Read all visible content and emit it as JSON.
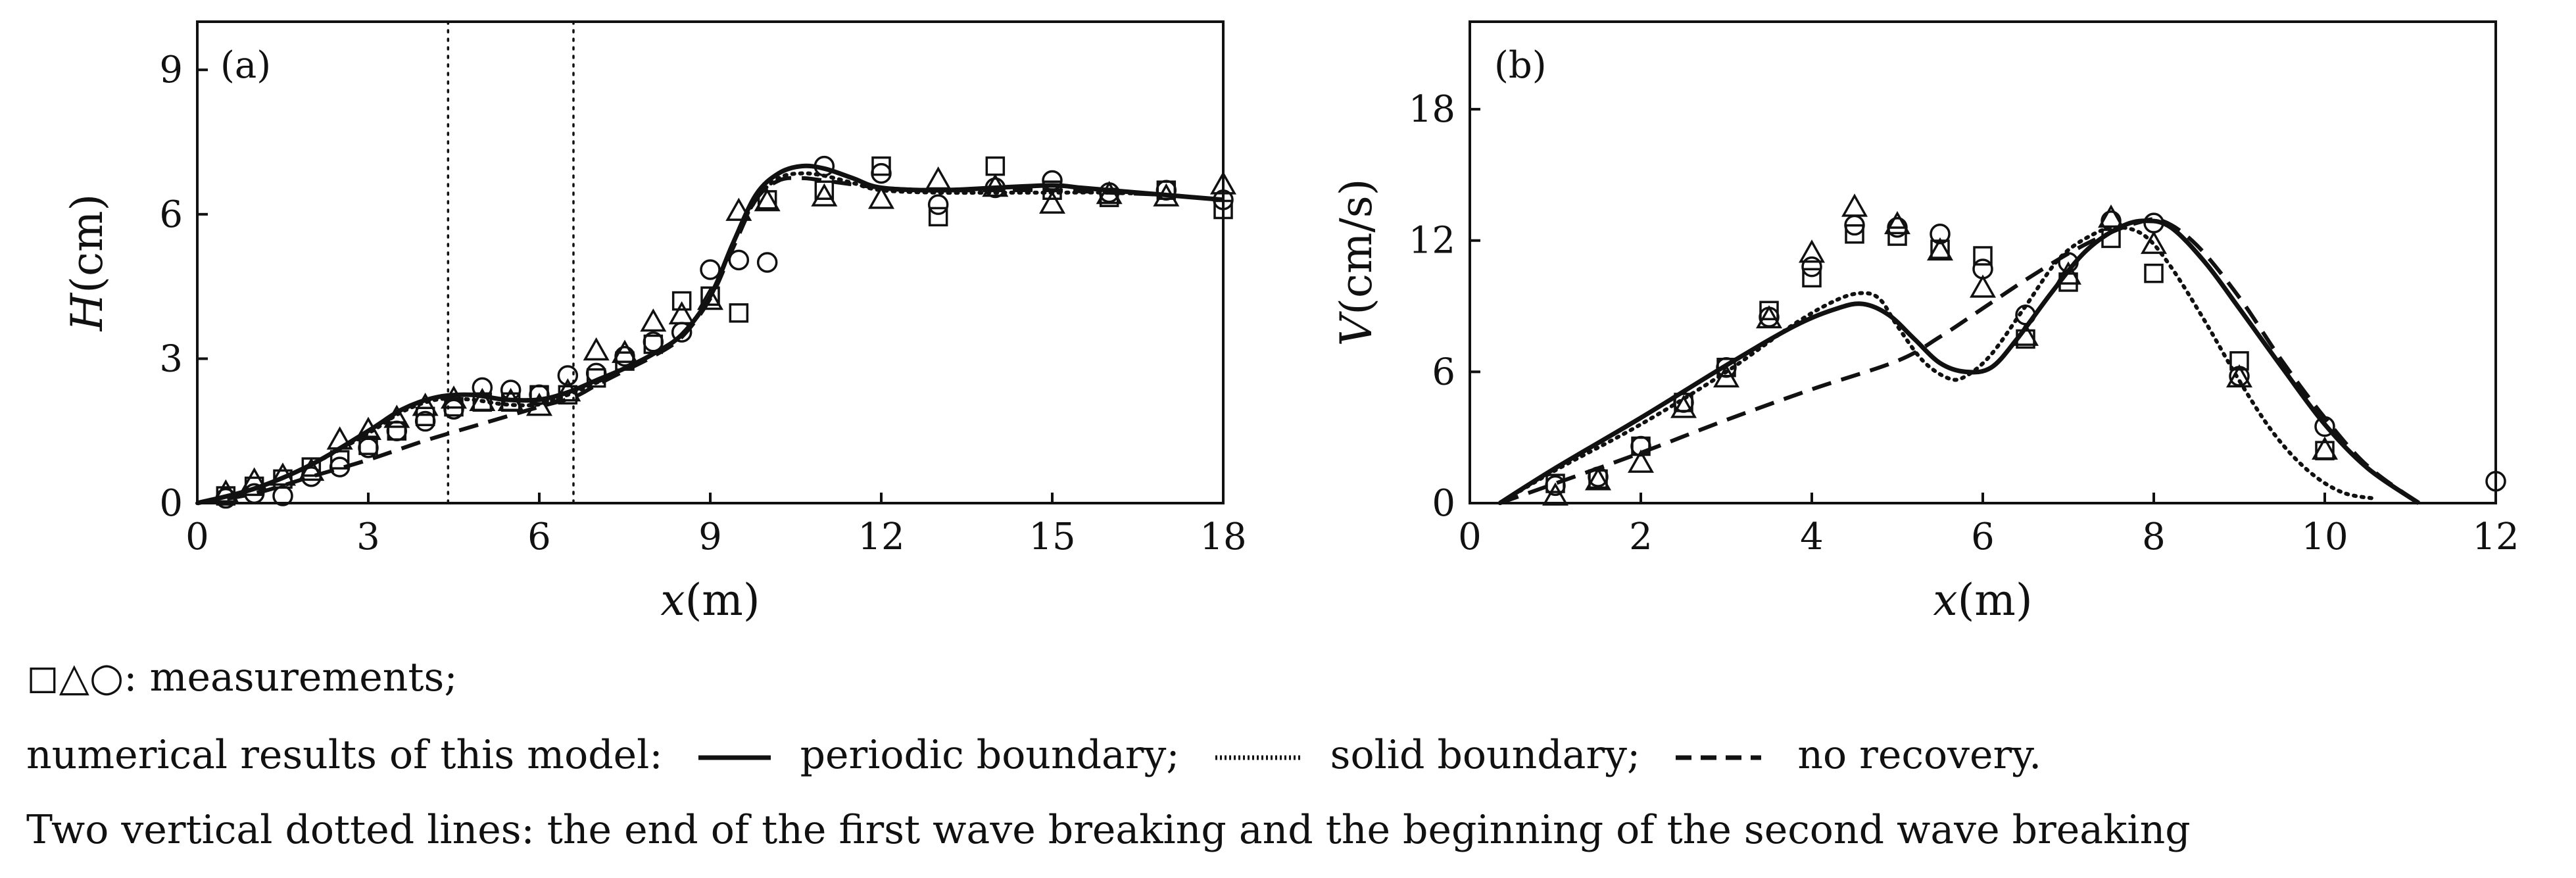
{
  "chart_data": [
    {
      "type": "line",
      "panel_label": "(a)",
      "xlabel_var": "x",
      "xlabel_unit": "(m)",
      "ylabel_var": "H",
      "ylabel_unit": "(cm)",
      "xlim": [
        0,
        18
      ],
      "ylim": [
        0,
        10
      ],
      "xticks": [
        0,
        3,
        6,
        9,
        12,
        15,
        18
      ],
      "yticks": [
        0,
        3,
        6,
        9
      ],
      "vlines": [
        4.4,
        6.6
      ],
      "series": [
        {
          "name": "periodic boundary",
          "style": "solid",
          "x": [
            0,
            1,
            2,
            3,
            3.6,
            4.2,
            4.8,
            5.4,
            6.0,
            6.5,
            7.0,
            7.5,
            8.0,
            8.5,
            9.0,
            9.4,
            9.8,
            10.2,
            10.6,
            11.0,
            11.5,
            12.0,
            13.0,
            14.0,
            15.0,
            15.5,
            16.0,
            17.0,
            18.0
          ],
          "y": [
            0,
            0.3,
            0.8,
            1.5,
            1.95,
            2.2,
            2.25,
            2.15,
            2.15,
            2.3,
            2.55,
            2.8,
            3.1,
            3.5,
            4.3,
            5.4,
            6.4,
            6.85,
            7.0,
            6.95,
            6.75,
            6.55,
            6.5,
            6.55,
            6.6,
            6.55,
            6.5,
            6.4,
            6.3
          ]
        },
        {
          "name": "solid boundary",
          "style": "dotted",
          "x": [
            0,
            1,
            2,
            3,
            3.6,
            4.2,
            4.8,
            5.4,
            6.0,
            6.5,
            7.0,
            7.5,
            8.0,
            8.5,
            9.0,
            9.4,
            9.8,
            10.2,
            10.6,
            11.0,
            11.5,
            12.0,
            13.0,
            14.0,
            15.0,
            16.0,
            17.0,
            18.0
          ],
          "y": [
            0,
            0.3,
            0.8,
            1.45,
            1.9,
            2.15,
            2.15,
            2.05,
            2.05,
            2.25,
            2.5,
            2.8,
            3.1,
            3.5,
            4.3,
            5.4,
            6.3,
            6.75,
            6.85,
            6.8,
            6.65,
            6.5,
            6.45,
            6.45,
            6.45,
            6.45,
            6.4,
            6.3
          ]
        },
        {
          "name": "no recovery",
          "style": "dashed",
          "x": [
            0,
            1,
            2,
            3,
            4,
            5,
            6,
            6.6,
            7.0,
            7.5,
            8.0,
            8.5,
            9.0,
            9.4,
            9.8,
            10.2,
            10.6,
            11.0,
            12.0,
            13.0,
            14.0,
            15.0,
            16.0,
            17.0,
            18.0
          ],
          "y": [
            0,
            0.2,
            0.55,
            0.9,
            1.3,
            1.65,
            2.0,
            2.2,
            2.45,
            2.75,
            3.05,
            3.45,
            4.25,
            5.3,
            6.3,
            6.7,
            6.75,
            6.7,
            6.55,
            6.5,
            6.5,
            6.5,
            6.45,
            6.4,
            6.3
          ]
        },
        {
          "name": "measurements (square)",
          "marker": "square",
          "x": [
            0.5,
            1.0,
            1.5,
            2.0,
            2.5,
            3.0,
            3.5,
            4.0,
            4.5,
            5.0,
            5.5,
            6.0,
            6.5,
            7.0,
            7.5,
            8.0,
            8.5,
            9.0,
            9.5,
            10.0,
            11.0,
            12.0,
            13.0,
            14.0,
            15.0,
            16.0,
            17.0,
            18.0
          ],
          "y": [
            0.15,
            0.35,
            0.5,
            0.75,
            0.9,
            1.2,
            1.5,
            1.8,
            2.0,
            2.1,
            2.1,
            2.25,
            2.25,
            2.6,
            2.95,
            3.3,
            4.2,
            4.3,
            3.95,
            6.3,
            6.5,
            7.0,
            5.95,
            7.0,
            6.5,
            6.35,
            6.5,
            6.1
          ]
        },
        {
          "name": "measurements (triangle)",
          "marker": "triangle",
          "x": [
            0.5,
            1.0,
            1.5,
            2.0,
            2.5,
            3.0,
            3.5,
            4.0,
            4.5,
            5.0,
            5.5,
            6.0,
            6.5,
            7.0,
            7.5,
            8.0,
            8.5,
            9.0,
            9.5,
            10.0,
            11.0,
            12.0,
            13.0,
            14.0,
            15.0,
            16.0,
            17.0,
            18.0
          ],
          "y": [
            0.2,
            0.45,
            0.55,
            0.65,
            1.3,
            1.5,
            1.75,
            2.0,
            2.15,
            2.1,
            2.1,
            2.0,
            2.3,
            3.15,
            3.1,
            3.75,
            3.9,
            4.2,
            6.05,
            6.25,
            6.35,
            6.3,
            6.7,
            6.55,
            6.2,
            6.4,
            6.35,
            6.6
          ]
        },
        {
          "name": "measurements (circle)",
          "marker": "circle",
          "x": [
            0.5,
            1.0,
            1.5,
            2.0,
            2.5,
            3.0,
            3.5,
            4.0,
            4.5,
            5.0,
            5.5,
            6.0,
            6.5,
            7.0,
            7.5,
            8.0,
            8.5,
            9.0,
            9.5,
            10.0,
            11.0,
            12.0,
            13.0,
            14.0,
            15.0,
            16.0,
            17.0,
            18.0
          ],
          "y": [
            0.1,
            0.2,
            0.15,
            0.55,
            0.75,
            1.15,
            1.5,
            1.7,
            1.95,
            2.4,
            2.35,
            2.25,
            2.65,
            2.7,
            3.05,
            3.35,
            3.55,
            4.85,
            5.05,
            5.0,
            7.0,
            6.85,
            6.2,
            6.55,
            6.7,
            6.45,
            6.5,
            6.3
          ]
        }
      ]
    },
    {
      "type": "line",
      "panel_label": "(b)",
      "xlabel_var": "x",
      "xlabel_unit": "(m)",
      "ylabel_var": "V",
      "ylabel_unit": "(cm/s)",
      "xlim": [
        0,
        12
      ],
      "ylim": [
        0,
        22
      ],
      "xticks": [
        0,
        2,
        4,
        6,
        8,
        10,
        12
      ],
      "yticks": [
        0,
        6,
        12,
        18
      ],
      "series": [
        {
          "name": "periodic boundary",
          "style": "solid",
          "x": [
            0.35,
            1.0,
            2.0,
            3.0,
            3.8,
            4.3,
            4.6,
            4.9,
            5.2,
            5.5,
            5.8,
            6.1,
            6.4,
            6.8,
            7.2,
            7.6,
            7.9,
            8.2,
            8.6,
            9.0,
            9.5,
            10.0,
            10.5,
            11.1
          ],
          "y": [
            0,
            1.6,
            3.9,
            6.3,
            8.1,
            8.9,
            9.1,
            8.6,
            7.5,
            6.4,
            6.0,
            6.2,
            7.5,
            9.6,
            11.5,
            12.6,
            12.9,
            12.6,
            11.0,
            8.9,
            6.2,
            3.6,
            1.6,
            0
          ]
        },
        {
          "name": "solid boundary",
          "style": "dotted",
          "x": [
            0.35,
            1.0,
            2.0,
            3.0,
            3.8,
            4.3,
            4.6,
            4.8,
            5.0,
            5.3,
            5.6,
            5.8,
            6.1,
            6.5,
            6.9,
            7.3,
            7.6,
            7.9,
            8.2,
            8.6,
            9.0,
            9.4,
            9.8,
            10.2,
            10.6
          ],
          "y": [
            0,
            1.5,
            3.6,
            6.0,
            8.2,
            9.3,
            9.6,
            9.3,
            8.1,
            6.5,
            5.7,
            5.8,
            6.8,
            9.0,
            11.2,
            12.3,
            12.6,
            12.2,
            10.8,
            8.3,
            5.6,
            3.2,
            1.5,
            0.5,
            0.2
          ]
        },
        {
          "name": "no recovery",
          "style": "dashed",
          "x": [
            0.35,
            1.0,
            2.0,
            3.0,
            4.0,
            5.0,
            5.5,
            6.0,
            6.5,
            7.0,
            7.4,
            7.8,
            8.1,
            8.5,
            9.0,
            9.5,
            10.0,
            10.5,
            11.1
          ],
          "y": [
            0,
            0.9,
            2.3,
            3.8,
            5.2,
            6.5,
            7.6,
            8.9,
            10.2,
            11.4,
            12.2,
            12.8,
            12.9,
            11.8,
            9.4,
            6.5,
            3.9,
            1.7,
            0
          ]
        },
        {
          "name": "measurements (square)",
          "marker": "square",
          "x": [
            1.0,
            1.5,
            2.0,
            2.5,
            3.0,
            3.5,
            4.0,
            4.5,
            5.0,
            5.5,
            6.0,
            6.5,
            7.0,
            7.5,
            8.0,
            9.0,
            10.0
          ],
          "y": [
            0.9,
            1.1,
            2.6,
            4.6,
            6.2,
            8.8,
            10.3,
            12.3,
            12.2,
            11.6,
            11.3,
            7.5,
            10.1,
            12.1,
            10.5,
            6.5,
            2.4
          ]
        },
        {
          "name": "measurements (triangle)",
          "marker": "triangle",
          "x": [
            1.0,
            1.5,
            2.0,
            2.5,
            3.0,
            3.5,
            4.0,
            4.5,
            5.0,
            5.5,
            6.0,
            6.5,
            7.0,
            7.5,
            8.0,
            9.0,
            10.0
          ],
          "y": [
            0.3,
            1.0,
            1.8,
            4.3,
            5.7,
            8.4,
            11.4,
            13.5,
            12.7,
            11.5,
            9.8,
            7.6,
            10.4,
            13.0,
            11.8,
            5.7,
            2.4
          ]
        },
        {
          "name": "measurements (circle)",
          "marker": "circle",
          "x": [
            1.0,
            1.5,
            2.0,
            2.5,
            3.0,
            3.5,
            4.0,
            4.5,
            5.0,
            5.5,
            6.0,
            6.5,
            7.0,
            7.5,
            8.0,
            9.0,
            10.0,
            12.0
          ],
          "y": [
            0.8,
            1.2,
            2.6,
            4.6,
            6.2,
            8.5,
            10.8,
            12.7,
            12.6,
            12.3,
            10.7,
            8.6,
            11.0,
            12.9,
            12.8,
            5.8,
            3.5,
            1.0
          ]
        }
      ]
    }
  ],
  "caption": {
    "line1": "◻△○: measurements;",
    "line2_prefix": "numerical results of this model:",
    "line2_periodic": "periodic boundary;",
    "line2_solid": "solid boundary;",
    "line2_norecovery": "no recovery.",
    "line3": "Two vertical dotted lines: the end of the first wave breaking and the beginning of the second wave breaking"
  }
}
